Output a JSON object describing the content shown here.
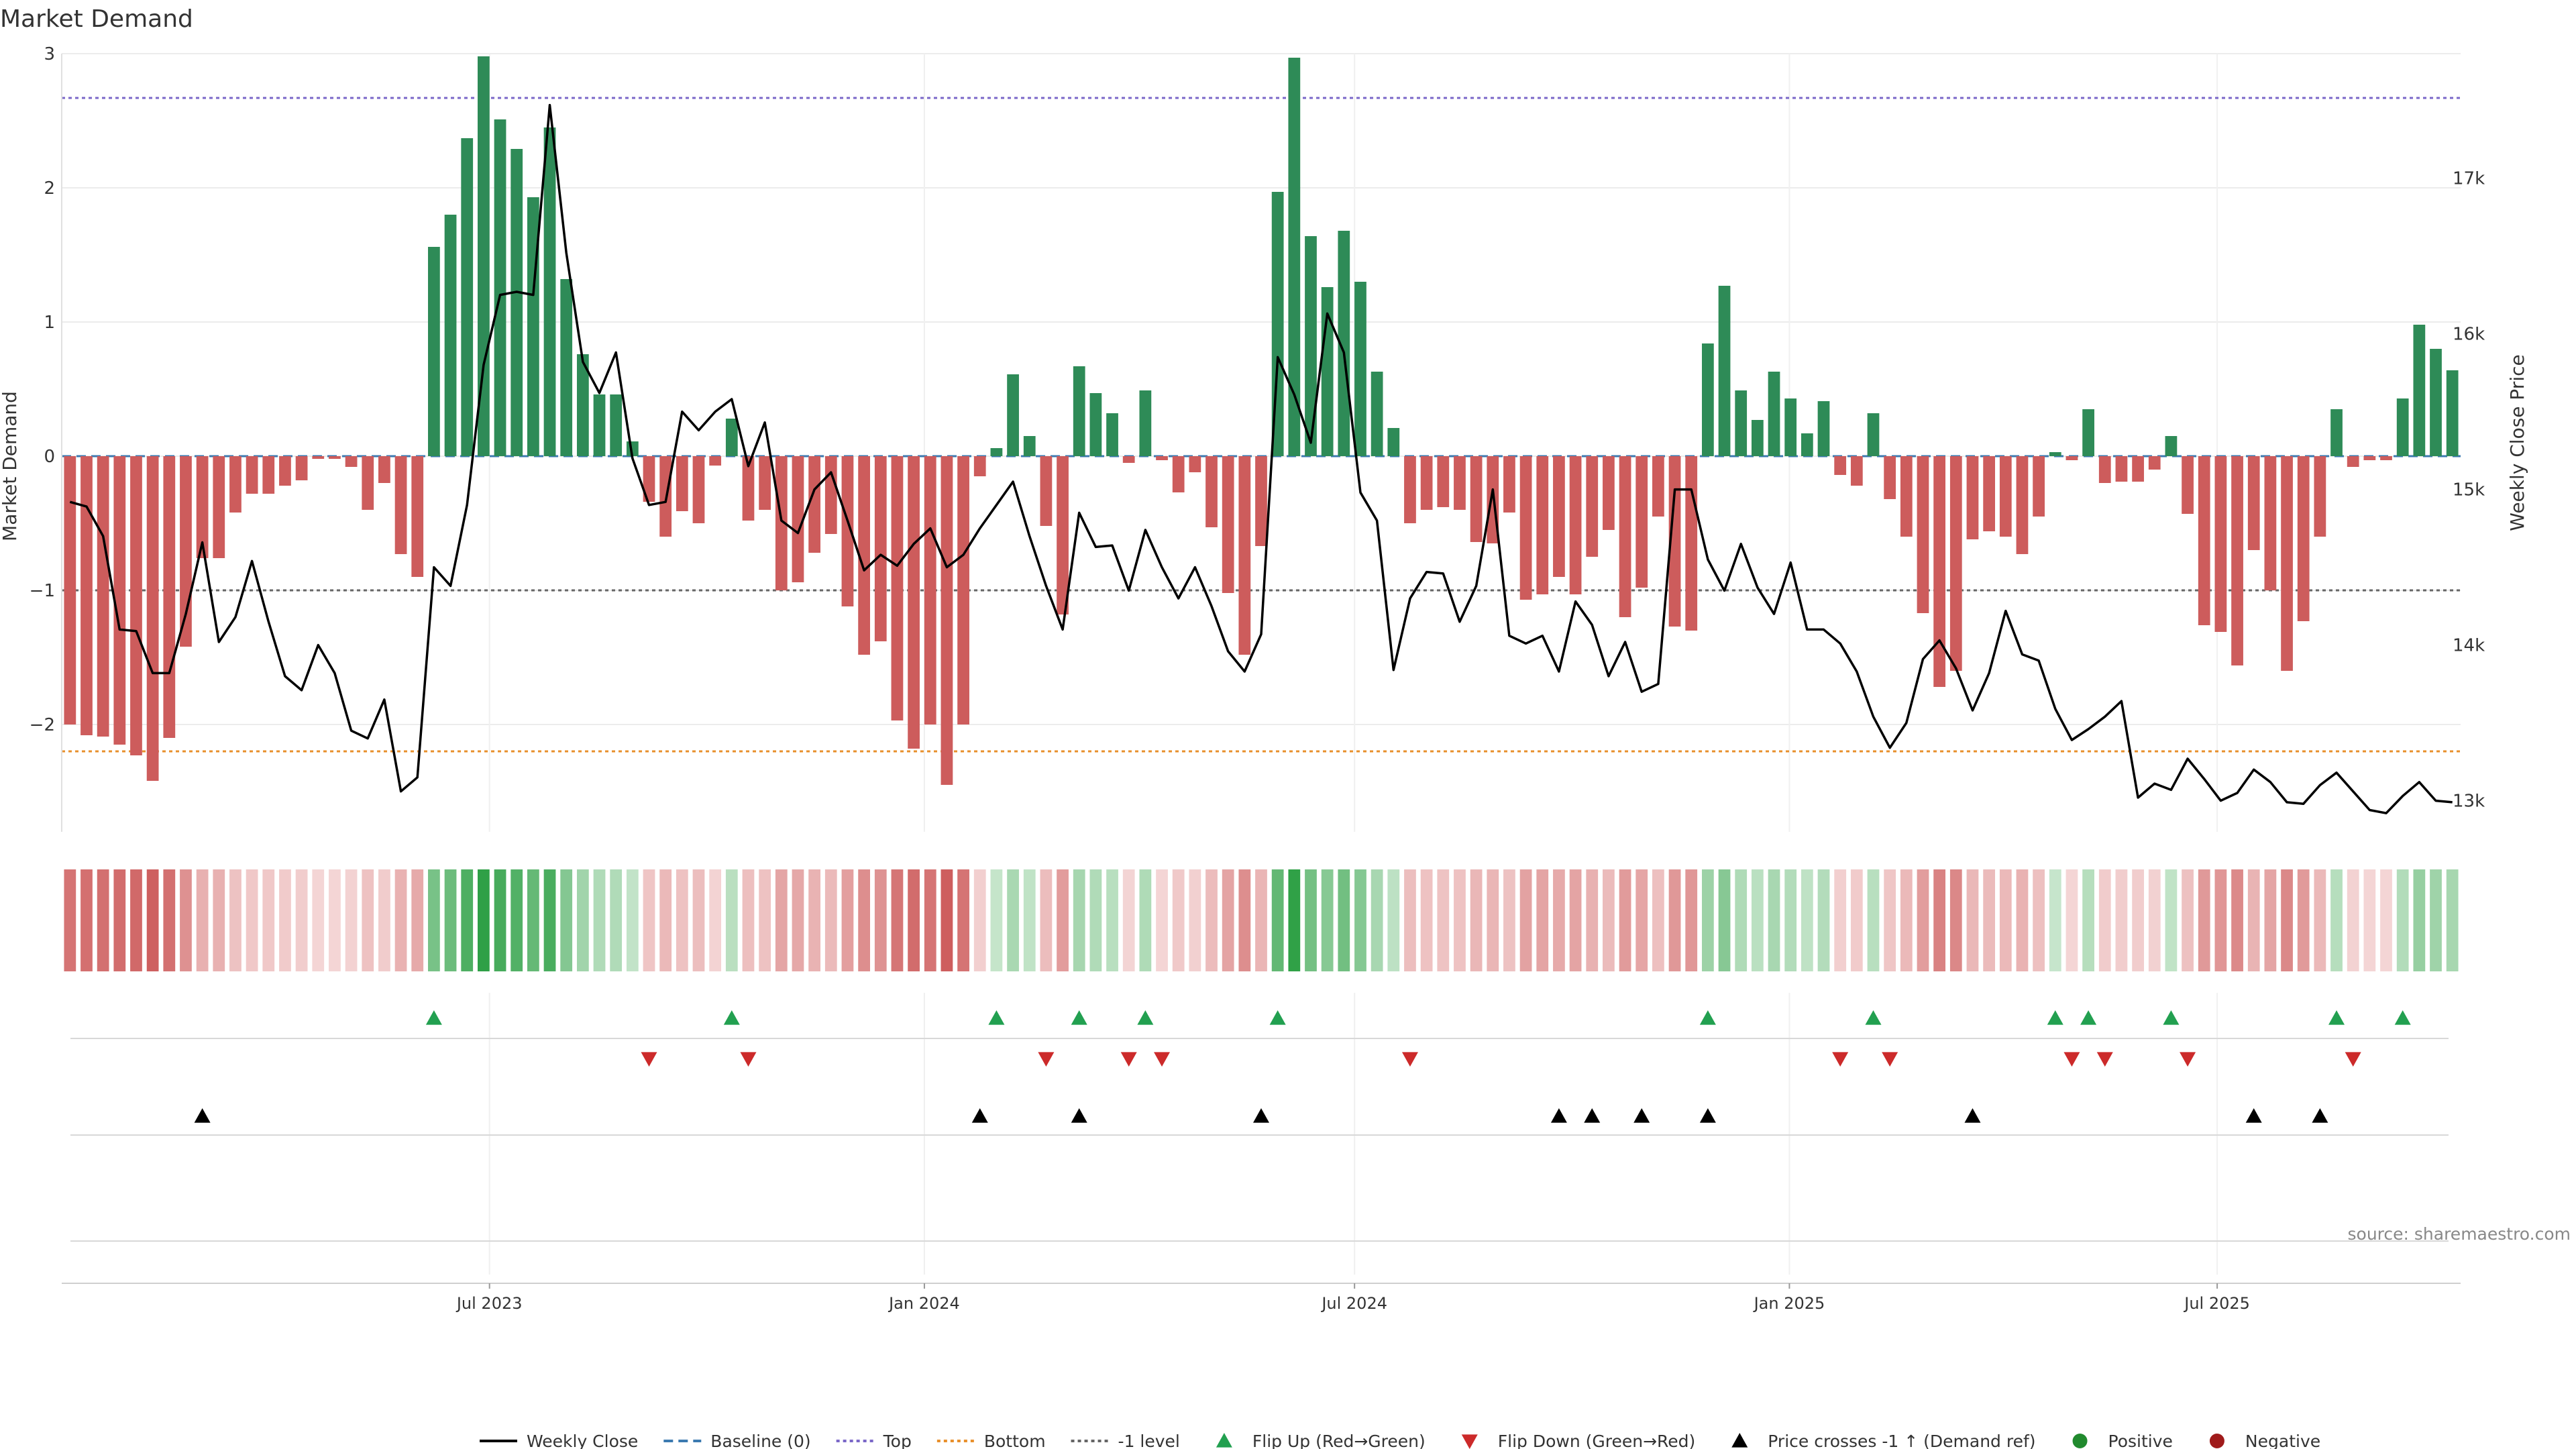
{
  "chart_data": {
    "type": "bar",
    "title": "Market Demand",
    "ylabel": "Market Demand",
    "y2label": "Weekly Close Price",
    "source": "source: sharemaestro.com",
    "ylim": [
      -2.8,
      3.0
    ],
    "y2lim": [
      12800,
      17800
    ],
    "yticks": [
      {
        "v": 3,
        "t": "3"
      },
      {
        "v": 2,
        "t": "2"
      },
      {
        "v": 1,
        "t": "1"
      },
      {
        "v": 0,
        "t": "0"
      },
      {
        "v": -1,
        "t": "−1"
      },
      {
        "v": -2,
        "t": "−2"
      }
    ],
    "y2ticks": [
      {
        "v": 17000,
        "t": "17k"
      },
      {
        "v": 16000,
        "t": "16k"
      },
      {
        "v": 15000,
        "t": "15k"
      },
      {
        "v": 14000,
        "t": "14k"
      },
      {
        "v": 13000,
        "t": "13k"
      }
    ],
    "xlim": [
      "2023-01-01",
      "2025-10-12"
    ],
    "xticks": [
      {
        "date": "2023-07-01",
        "label": "Jul 2023"
      },
      {
        "date": "2024-01-01",
        "label": "Jan 2024"
      },
      {
        "date": "2024-07-01",
        "label": "Jul 2024"
      },
      {
        "date": "2025-01-01",
        "label": "Jan 2025"
      },
      {
        "date": "2025-07-01",
        "label": "Jul 2025"
      }
    ],
    "start_date": "2023-01-01",
    "week_days": 7,
    "reference_lines": [
      {
        "name": "Top",
        "value": 2.67,
        "color": "#7b68c8"
      },
      {
        "name": "Bottom",
        "value": -2.2,
        "color": "#e8902c"
      },
      {
        "name": "-1 level",
        "value": -1.0,
        "color": "#666666"
      }
    ],
    "series": [
      {
        "name": "Market Demand",
        "values": [
          -2.0,
          -2.08,
          -2.09,
          -2.15,
          -2.23,
          -2.42,
          -2.1,
          -1.42,
          -0.76,
          -0.76,
          -0.42,
          -0.28,
          -0.28,
          -0.22,
          -0.18,
          -0.02,
          -0.02,
          -0.08,
          -0.4,
          -0.2,
          -0.73,
          -0.9,
          1.56,
          1.8,
          2.37,
          2.98,
          2.51,
          2.29,
          1.93,
          2.45,
          1.32,
          0.76,
          0.46,
          0.46,
          0.11,
          -0.34,
          -0.6,
          -0.41,
          -0.5,
          -0.07,
          0.28,
          -0.48,
          -0.4,
          -1.0,
          -0.94,
          -0.72,
          -0.58,
          -1.12,
          -1.48,
          -1.38,
          -1.97,
          -2.18,
          -2.0,
          -2.45,
          -2.0,
          -0.15,
          0.06,
          0.61,
          0.15,
          -0.52,
          -1.18,
          0.67,
          0.47,
          0.32,
          -0.05,
          0.49,
          -0.03,
          -0.27,
          -0.12,
          -0.53,
          -1.02,
          -1.48,
          -0.67,
          1.97,
          2.97,
          1.64,
          1.26,
          1.68,
          1.3,
          0.63,
          0.21,
          -0.5,
          -0.4,
          -0.38,
          -0.4,
          -0.64,
          -0.65,
          -0.42,
          -1.07,
          -1.03,
          -0.9,
          -1.03,
          -0.75,
          -0.55,
          -1.2,
          -0.98,
          -0.45,
          -1.27,
          -1.3,
          0.84,
          1.27,
          0.49,
          0.27,
          0.63,
          0.43,
          0.17,
          0.41,
          -0.14,
          -0.22,
          0.32,
          -0.32,
          -0.6,
          -1.17,
          -1.72,
          -1.6,
          -0.62,
          -0.56,
          -0.6,
          -0.73,
          -0.45,
          0.03,
          -0.03,
          0.35,
          -0.2,
          -0.19,
          -0.19,
          -0.1,
          0.15,
          -0.43,
          -1.26,
          -1.31,
          -1.56,
          -0.7,
          -1.0,
          -1.6,
          -1.23,
          -0.6,
          0.35,
          -0.08,
          -0.03,
          -0.03,
          0.43,
          0.98,
          0.8,
          0.64
        ]
      },
      {
        "name": "Weekly Close",
        "values": [
          14920,
          14890,
          14700,
          14100,
          14090,
          13820,
          13820,
          14200,
          14660,
          14020,
          14180,
          14540,
          14150,
          13800,
          13710,
          14000,
          13820,
          13450,
          13400,
          13650,
          13060,
          13150,
          14500,
          14380,
          14900,
          15800,
          16250,
          16270,
          16250,
          17470,
          16520,
          15820,
          15620,
          15880,
          15200,
          14900,
          14920,
          15500,
          15380,
          15500,
          15580,
          15150,
          15430,
          14800,
          14720,
          15000,
          15110,
          14800,
          14480,
          14580,
          14510,
          14650,
          14750,
          14500,
          14580,
          14750,
          14900,
          15050,
          14700,
          14380,
          14100,
          14850,
          14630,
          14640,
          14350,
          14740,
          14500,
          14300,
          14500,
          14250,
          13960,
          13830,
          14070,
          15850,
          15610,
          15300,
          16130,
          15880,
          14980,
          14800,
          13840,
          14300,
          14470,
          14460,
          14150,
          14380,
          15000,
          14060,
          14010,
          14060,
          13830,
          14280,
          14130,
          13800,
          14020,
          13700,
          13750,
          15000,
          15000,
          14550,
          14350,
          14650,
          14370,
          14200,
          14530,
          14100,
          14100,
          14010,
          13830,
          13540,
          13340,
          13500,
          13910,
          14030,
          13850,
          13580,
          13820,
          14220,
          13940,
          13900,
          13590,
          13390,
          13460,
          13540,
          13640,
          13020,
          13110,
          13070,
          13270,
          13140,
          13000,
          13050,
          13200,
          13120,
          12990,
          12980,
          13100,
          13180,
          13060,
          12940,
          12920,
          13030,
          13120,
          13000,
          12990
        ]
      }
    ],
    "legend_entries": [
      {
        "label": "Weekly Close",
        "kind": "line",
        "color": "#000000"
      },
      {
        "label": "Baseline (0)",
        "kind": "dash",
        "color": "#3c7ab0"
      },
      {
        "label": "Top",
        "kind": "dot",
        "color": "#7b68c8"
      },
      {
        "label": "Bottom",
        "kind": "dot",
        "color": "#e8902c"
      },
      {
        "label": "-1 level",
        "kind": "dot",
        "color": "#666666"
      },
      {
        "label": "Flip Up (Red→Green)",
        "kind": "tri-up",
        "color": "#22a050"
      },
      {
        "label": "Flip Down (Green→Red)",
        "kind": "tri-down",
        "color": "#cc2a2a"
      },
      {
        "label": "Price crosses -1 ↑ (Demand ref)",
        "kind": "tri-up",
        "color": "#000000"
      },
      {
        "label": "Positive",
        "kind": "circle",
        "color": "#218a2e"
      },
      {
        "label": "Negative",
        "kind": "circle",
        "color": "#a01b1b"
      }
    ],
    "colors": {
      "positive": "#2e8b57",
      "negative": "#cd5c5c",
      "flip_up": "#22a050",
      "flip_down": "#cc2a2a",
      "cross": "#000000"
    }
  }
}
